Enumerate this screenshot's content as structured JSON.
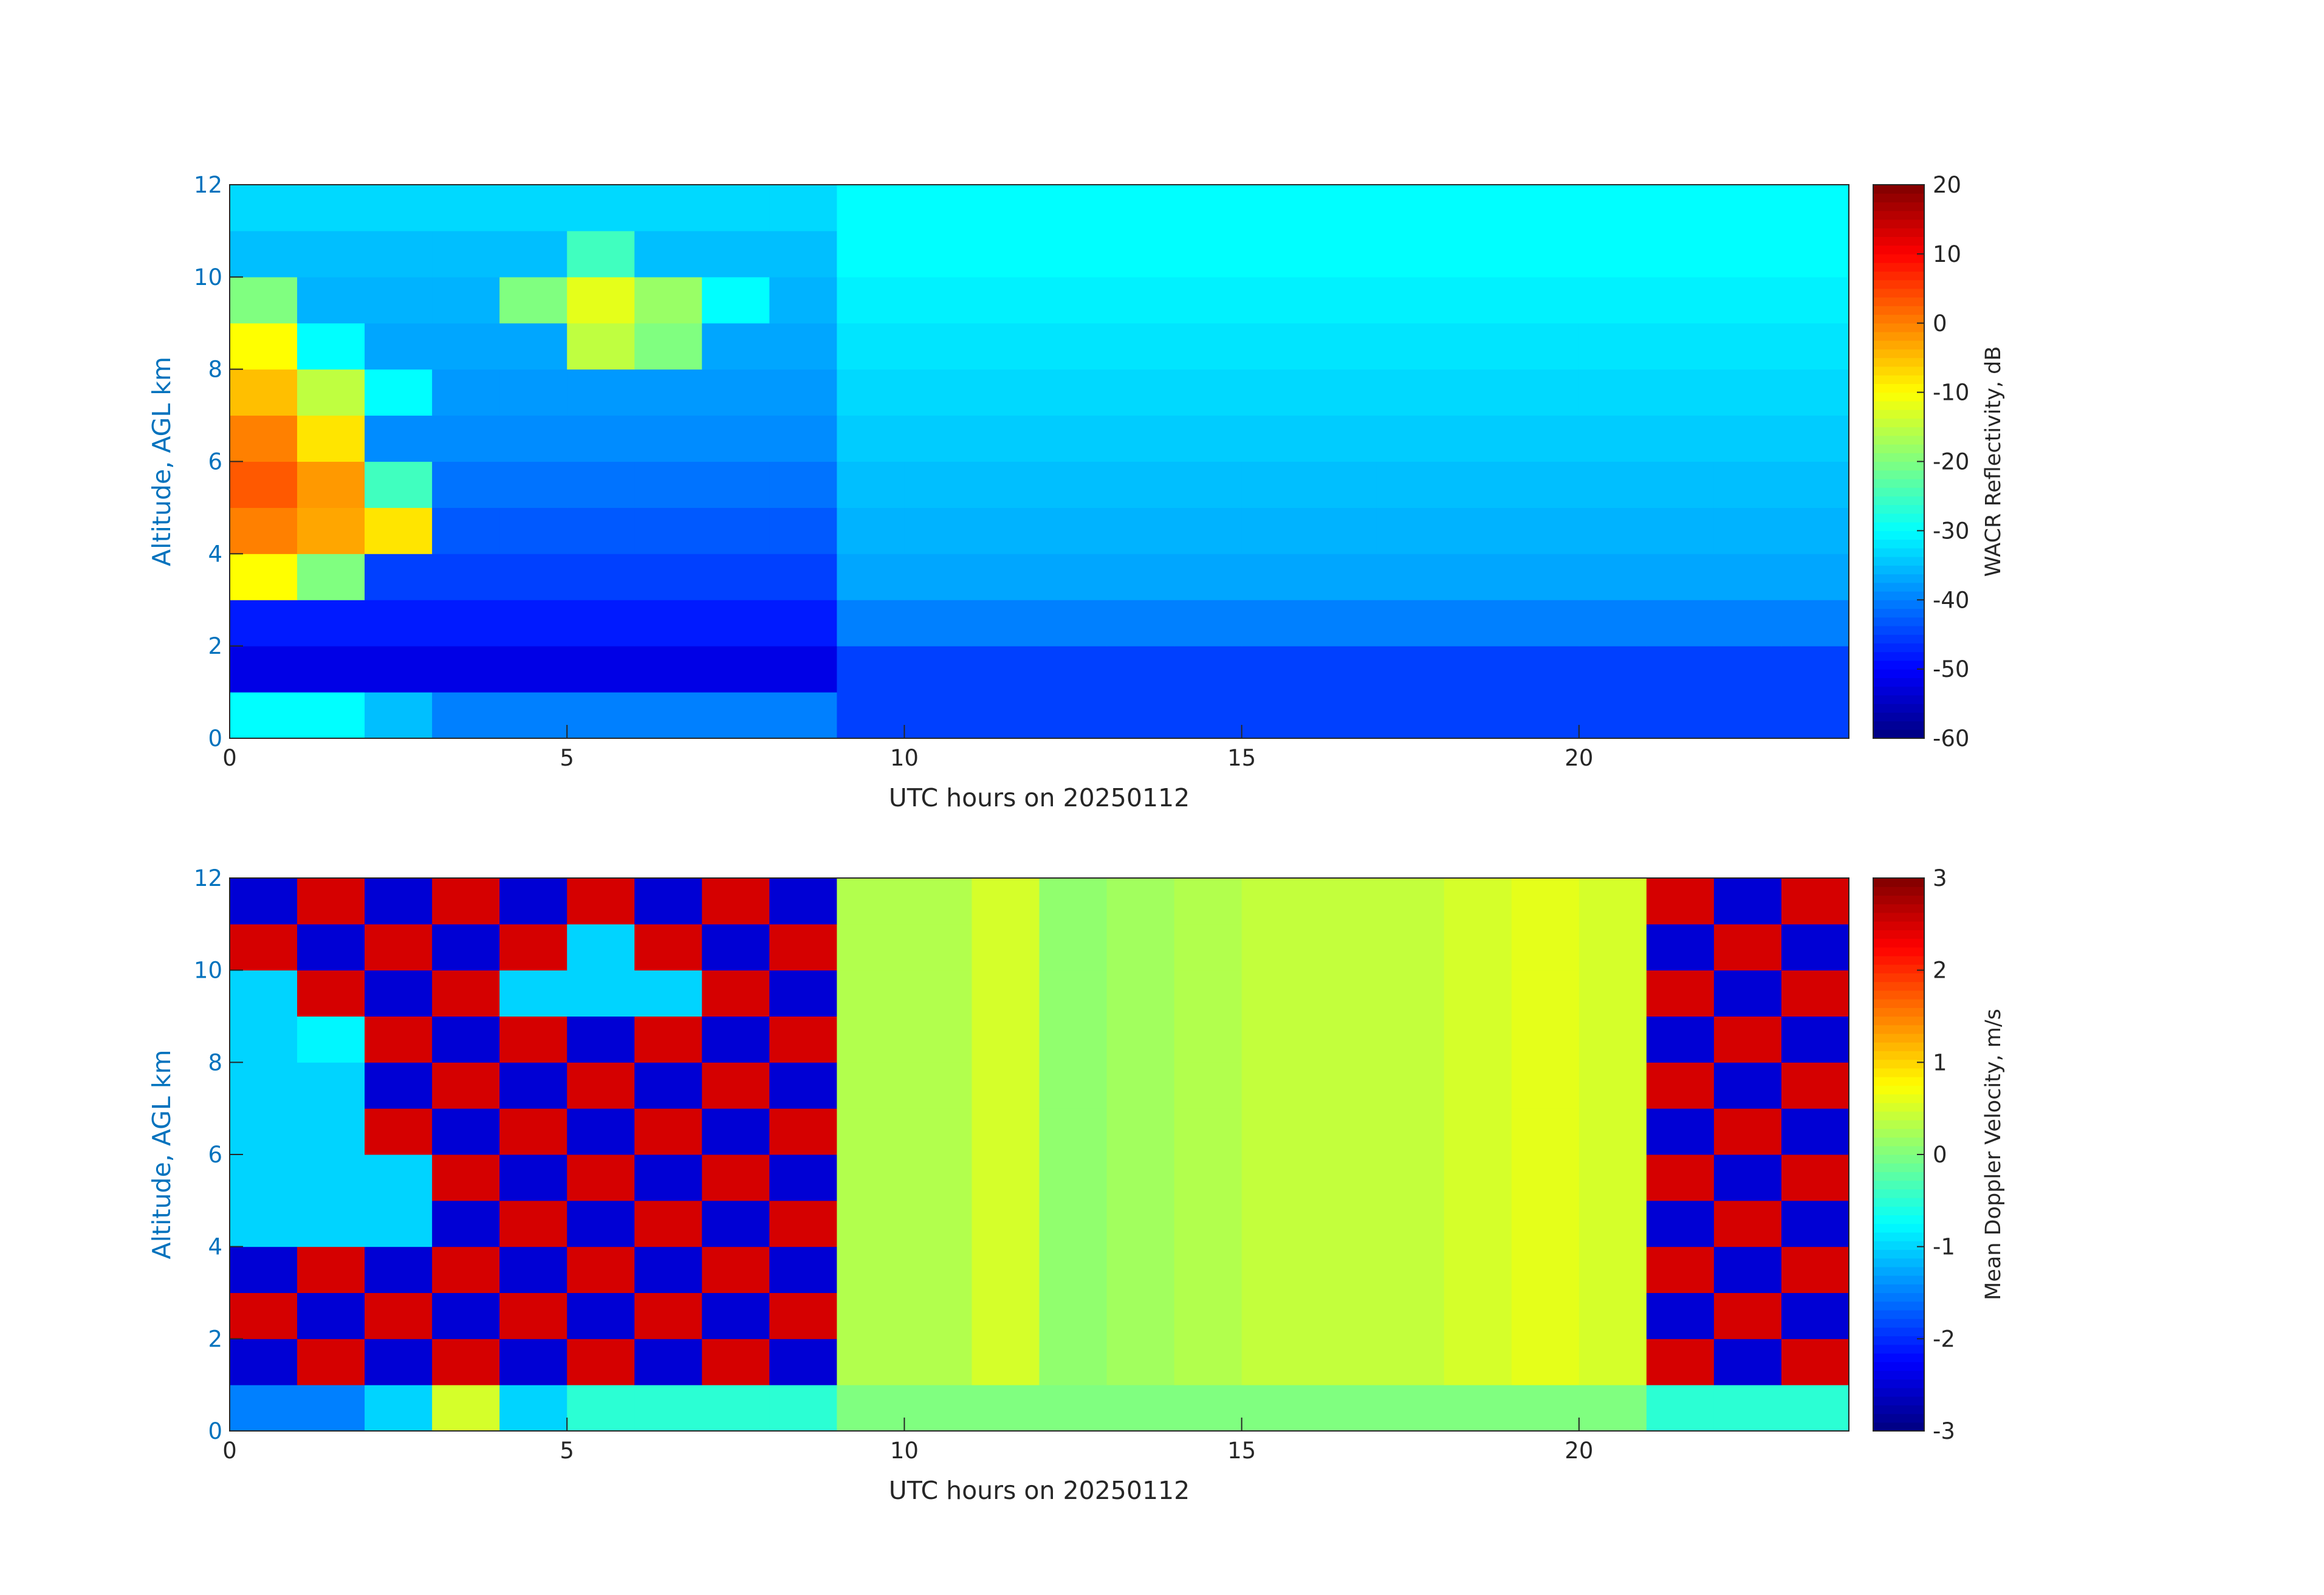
{
  "chart_data": [
    {
      "type": "heatmap",
      "colormap": "jet",
      "xlabel": "UTC hours on 20250112",
      "ylabel": "Altitude, AGL km",
      "ylabel_color": "#0072bd",
      "colorbar_label": "WACR Reflectivity, dB",
      "xlim": [
        0,
        24
      ],
      "xticks": [
        0,
        5,
        10,
        15,
        20
      ],
      "ylim": [
        0,
        12
      ],
      "yticks": [
        0,
        2,
        4,
        6,
        8,
        10,
        12
      ],
      "zlim": [
        -60,
        20
      ],
      "zticks": [
        -60,
        -50,
        -40,
        -30,
        -20,
        -10,
        0,
        10,
        20
      ],
      "xbins": [
        0,
        1,
        2,
        3,
        4,
        5,
        6,
        7,
        8,
        9,
        10,
        11,
        12,
        13,
        14,
        15,
        16,
        17,
        18,
        19,
        20,
        21,
        22,
        23,
        24
      ],
      "ybins": [
        0,
        1,
        2,
        3,
        4,
        5,
        6,
        7,
        8,
        9,
        10,
        11,
        12
      ],
      "z": [
        [
          -30,
          -30,
          -35,
          -40,
          -40,
          -40,
          -40,
          -40,
          -40,
          -45,
          -45,
          -45,
          -45,
          -45,
          -45,
          -45,
          -45,
          -45,
          -45,
          -45,
          -45,
          -45,
          -45,
          -45
        ],
        [
          -52,
          -52,
          -52,
          -52,
          -52,
          -52,
          -52,
          -52,
          -52,
          -45,
          -45,
          -45,
          -45,
          -45,
          -45,
          -45,
          -45,
          -45,
          -45,
          -45,
          -45,
          -45,
          -45,
          -45
        ],
        [
          -48,
          -48,
          -48,
          -48,
          -48,
          -48,
          -48,
          -48,
          -48,
          -40,
          -40,
          -40,
          -40,
          -40,
          -40,
          -40,
          -40,
          -40,
          -40,
          -40,
          -40,
          -40,
          -40,
          -40
        ],
        [
          -10,
          -20,
          -45,
          -45,
          -45,
          -45,
          -45,
          -45,
          -45,
          -37,
          -37,
          -37,
          -37,
          -37,
          -37,
          -37,
          -37,
          -37,
          -37,
          -37,
          -37,
          -37,
          -37,
          -37
        ],
        [
          0,
          -3,
          -8,
          -43,
          -43,
          -43,
          -43,
          -43,
          -43,
          -36,
          -36,
          -36,
          -36,
          -36,
          -36,
          -36,
          -36,
          -36,
          -36,
          -36,
          -36,
          -36,
          -36,
          -36
        ],
        [
          3,
          -2,
          -25,
          -41,
          -41,
          -41,
          -41,
          -41,
          -41,
          -35,
          -35,
          -35,
          -35,
          -35,
          -35,
          -35,
          -35,
          -35,
          -35,
          -35,
          -35,
          -35,
          -35,
          -35
        ],
        [
          0,
          -8,
          -39,
          -39,
          -39,
          -39,
          -39,
          -39,
          -39,
          -34,
          -34,
          -34,
          -34,
          -34,
          -34,
          -34,
          -34,
          -34,
          -34,
          -34,
          -34,
          -34,
          -34,
          -34
        ],
        [
          -5,
          -15,
          -30,
          -38,
          -38,
          -38,
          -38,
          -38,
          -38,
          -33,
          -33,
          -33,
          -33,
          -33,
          -33,
          -33,
          -33,
          -33,
          -33,
          -33,
          -33,
          -33,
          -33,
          -33
        ],
        [
          -10,
          -30,
          -37,
          -37,
          -37,
          -15,
          -20,
          -37,
          -37,
          -32,
          -32,
          -32,
          -32,
          -32,
          -32,
          -32,
          -32,
          -32,
          -32,
          -32,
          -32,
          -32,
          -32,
          -32
        ],
        [
          -20,
          -36,
          -36,
          -36,
          -20,
          -12,
          -18,
          -30,
          -36,
          -31,
          -31,
          -31,
          -31,
          -31,
          -31,
          -31,
          -31,
          -31,
          -31,
          -31,
          -31,
          -31,
          -31,
          -31
        ],
        [
          -35,
          -35,
          -35,
          -35,
          -35,
          -25,
          -35,
          -35,
          -35,
          -30,
          -30,
          -30,
          -30,
          -30,
          -30,
          -30,
          -30,
          -30,
          -30,
          -30,
          -30,
          -30,
          -30,
          -30
        ],
        [
          -33,
          -33,
          -33,
          -33,
          -33,
          -33,
          -33,
          -33,
          -33,
          -30,
          -30,
          -30,
          -30,
          -30,
          -30,
          -30,
          -30,
          -30,
          -30,
          -30,
          -30,
          -30,
          -30,
          -30
        ]
      ]
    },
    {
      "type": "heatmap",
      "colormap": "jet",
      "xlabel": "UTC hours on 20250112",
      "ylabel": "Altitude, AGL km",
      "ylabel_color": "#0072bd",
      "colorbar_label": "Mean Doppler Velocity, m/s",
      "xlim": [
        0,
        24
      ],
      "xticks": [
        0,
        5,
        10,
        15,
        20
      ],
      "ylim": [
        0,
        12
      ],
      "yticks": [
        0,
        2,
        4,
        6,
        8,
        10,
        12
      ],
      "zlim": [
        -3,
        3
      ],
      "zticks": [
        -3,
        -2,
        -1,
        0,
        1,
        2,
        3
      ],
      "xbins": [
        0,
        1,
        2,
        3,
        4,
        5,
        6,
        7,
        8,
        9,
        10,
        11,
        12,
        13,
        14,
        15,
        16,
        17,
        18,
        19,
        20,
        21,
        22,
        23,
        24
      ],
      "ybins": [
        0,
        1,
        2,
        3,
        4,
        5,
        6,
        7,
        8,
        9,
        10,
        11,
        12
      ],
      "z": [
        [
          -1.5,
          -1.5,
          -1,
          0.5,
          -1,
          -0.5,
          -0.5,
          -0.5,
          -0.5,
          0,
          0,
          0,
          0,
          0,
          0,
          0,
          0,
          0,
          0,
          0,
          0,
          -0.5,
          -0.5,
          -0.5
        ],
        [
          -2.5,
          2.5,
          -2.5,
          2.5,
          -2.5,
          2.5,
          -2.5,
          2.5,
          -2.5,
          0.3,
          0.3,
          0.5,
          0.1,
          0.2,
          0.3,
          0.4,
          0.4,
          0.4,
          0.5,
          0.6,
          0.5,
          2.5,
          -2.5,
          2.5
        ],
        [
          2.5,
          -2.5,
          2.5,
          -2.5,
          2.5,
          -2.5,
          2.5,
          -2.5,
          2.5,
          0.3,
          0.3,
          0.5,
          0.1,
          0.2,
          0.3,
          0.4,
          0.4,
          0.4,
          0.5,
          0.6,
          0.5,
          -2.5,
          2.5,
          -2.5
        ],
        [
          -2.5,
          2.5,
          -2.5,
          2.5,
          -2.5,
          2.5,
          -2.5,
          2.5,
          -2.5,
          0.3,
          0.3,
          0.5,
          0.1,
          0.2,
          0.3,
          0.4,
          0.4,
          0.4,
          0.5,
          0.6,
          0.5,
          2.5,
          -2.5,
          2.5
        ],
        [
          -1,
          -1,
          -1,
          -2.5,
          2.5,
          -2.5,
          2.5,
          -2.5,
          2.5,
          0.3,
          0.3,
          0.5,
          0.1,
          0.2,
          0.3,
          0.4,
          0.4,
          0.4,
          0.5,
          0.6,
          0.5,
          -2.5,
          2.5,
          -2.5
        ],
        [
          -1,
          -1,
          -1,
          2.5,
          -2.5,
          2.5,
          -2.5,
          2.5,
          -2.5,
          0.3,
          0.3,
          0.5,
          0.1,
          0.2,
          0.3,
          0.4,
          0.4,
          0.4,
          0.5,
          0.6,
          0.5,
          2.5,
          -2.5,
          2.5
        ],
        [
          -1,
          -1,
          2.5,
          -2.5,
          2.5,
          -2.5,
          2.5,
          -2.5,
          2.5,
          0.3,
          0.3,
          0.5,
          0.1,
          0.2,
          0.3,
          0.4,
          0.4,
          0.4,
          0.5,
          0.6,
          0.5,
          -2.5,
          2.5,
          -2.5
        ],
        [
          -1,
          -1,
          -2.5,
          2.5,
          -2.5,
          2.5,
          -2.5,
          2.5,
          -2.5,
          0.3,
          0.3,
          0.5,
          0.1,
          0.2,
          0.3,
          0.4,
          0.4,
          0.4,
          0.5,
          0.6,
          0.5,
          2.5,
          -2.5,
          2.5
        ],
        [
          -1,
          -0.8,
          2.5,
          -2.5,
          2.5,
          -2.5,
          2.5,
          -2.5,
          2.5,
          0.3,
          0.3,
          0.5,
          0.1,
          0.2,
          0.3,
          0.4,
          0.4,
          0.4,
          0.5,
          0.6,
          0.5,
          -2.5,
          2.5,
          -2.5
        ],
        [
          -1,
          2.5,
          -2.5,
          2.5,
          -1,
          -1,
          -1,
          2.5,
          -2.5,
          0.3,
          0.3,
          0.5,
          0.1,
          0.2,
          0.3,
          0.4,
          0.4,
          0.4,
          0.5,
          0.6,
          0.5,
          2.5,
          -2.5,
          2.5
        ],
        [
          2.5,
          -2.5,
          2.5,
          -2.5,
          2.5,
          -1,
          2.5,
          -2.5,
          2.5,
          0.3,
          0.3,
          0.5,
          0.1,
          0.2,
          0.3,
          0.4,
          0.4,
          0.4,
          0.5,
          0.6,
          0.5,
          -2.5,
          2.5,
          -2.5
        ],
        [
          -2.5,
          2.5,
          -2.5,
          2.5,
          -2.5,
          2.5,
          -2.5,
          2.5,
          -2.5,
          0.3,
          0.3,
          0.5,
          0.1,
          0.2,
          0.3,
          0.4,
          0.4,
          0.4,
          0.5,
          0.6,
          0.5,
          2.5,
          -2.5,
          2.5
        ]
      ]
    }
  ]
}
